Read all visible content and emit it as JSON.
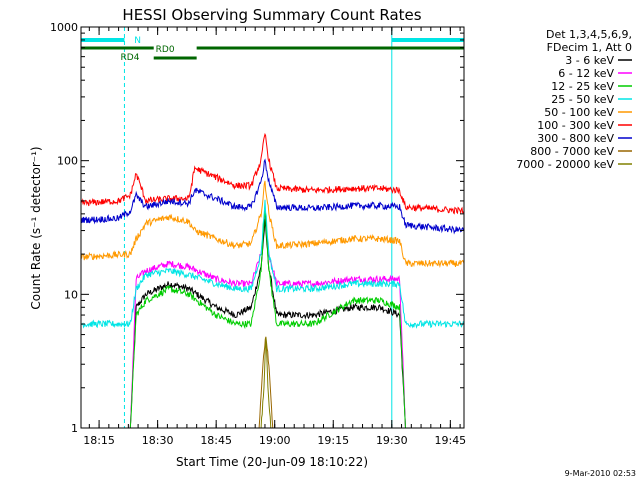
{
  "chart_data": {
    "type": "line",
    "title": "HESSI Observing Summary Count Rates",
    "xlabel": "Start Time (20-Jun-09 18:10:22)",
    "ylabel": "Count Rate (s⁻¹ detector⁻¹)",
    "x_scale": "time",
    "y_scale": "log",
    "xlim": [
      "18:10:22",
      "19:48:30"
    ],
    "ylim": [
      1,
      1000
    ],
    "x_ticks": [
      "18:15",
      "18:30",
      "18:45",
      "19:00",
      "19:15",
      "19:30",
      "19:45"
    ],
    "y_ticks": [
      "1",
      "10",
      "100",
      "1000"
    ],
    "legend_header": [
      "Det 1,3,4,5,6,9,",
      "FDecim 1, Att 0"
    ],
    "legend_position": "top-right, outside plot",
    "footer_date": "9-Mar-2010 02:53",
    "series": [
      {
        "name": "3 - 6 keV",
        "color": "#000000",
        "x": [
          "18:10:22",
          "18:23:00",
          "18:24:30",
          "18:27:00",
          "18:33:00",
          "18:38:00",
          "18:45:00",
          "18:50:00",
          "18:54:00",
          "18:56:30",
          "18:57:30",
          "18:58:30",
          "19:00:30",
          "19:10:00",
          "19:20:00",
          "19:27:00",
          "19:32:00",
          "19:33:30"
        ],
        "y": [
          1,
          1,
          8,
          10,
          12,
          11,
          8,
          7,
          8,
          16,
          35,
          16,
          7,
          7,
          8,
          8,
          7,
          1
        ]
      },
      {
        "name": "6 - 12 keV",
        "color": "#ff00ff",
        "x": [
          "18:10:22",
          "18:23:00",
          "18:24:30",
          "18:27:00",
          "18:33:00",
          "18:38:00",
          "18:45:00",
          "18:50:00",
          "18:54:00",
          "18:56:30",
          "18:57:30",
          "18:58:30",
          "19:00:30",
          "19:10:00",
          "19:20:00",
          "19:27:00",
          "19:32:00",
          "19:33:30"
        ],
        "y": [
          1,
          1,
          13,
          15,
          17,
          16,
          13,
          12,
          12,
          20,
          40,
          20,
          12,
          12,
          13,
          13,
          13,
          1
        ]
      },
      {
        "name": "12 - 25 keV",
        "color": "#00cc00",
        "x": [
          "18:10:22",
          "18:23:00",
          "18:24:30",
          "18:27:00",
          "18:33:00",
          "18:38:00",
          "18:45:00",
          "18:50:00",
          "18:54:00",
          "18:56:30",
          "18:57:30",
          "18:58:30",
          "19:00:30",
          "19:10:00",
          "19:20:00",
          "19:27:00",
          "19:32:00",
          "19:33:30"
        ],
        "y": [
          1,
          1,
          7,
          9,
          11,
          10,
          7,
          6,
          6,
          15,
          45,
          15,
          6,
          6,
          9,
          9,
          8,
          1
        ]
      },
      {
        "name": "25 - 50 keV",
        "color": "#00e5e5",
        "x": [
          "18:10:22",
          "18:23:00",
          "18:24:30",
          "18:27:00",
          "18:33:00",
          "18:38:00",
          "18:45:00",
          "18:50:00",
          "18:54:00",
          "18:56:30",
          "18:57:30",
          "18:58:30",
          "19:00:30",
          "19:10:00",
          "19:20:00",
          "19:27:00",
          "19:32:00",
          "19:33:30",
          "19:35:00",
          "19:48:30"
        ],
        "y": [
          6,
          6,
          11,
          14,
          15,
          14,
          12,
          11,
          11,
          20,
          50,
          20,
          11,
          11,
          12,
          12,
          12,
          6,
          6,
          6
        ]
      },
      {
        "name": "50 - 100 keV",
        "color": "#ff9900",
        "x": [
          "18:10:22",
          "18:23:00",
          "18:24:30",
          "18:27:00",
          "18:33:00",
          "18:38:00",
          "18:39:30",
          "18:45:00",
          "18:50:00",
          "18:54:00",
          "18:56:30",
          "18:57:30",
          "18:58:30",
          "19:00:30",
          "19:10:00",
          "19:20:00",
          "19:27:00",
          "19:32:00",
          "19:33:30",
          "19:48:30"
        ],
        "y": [
          19,
          20,
          26,
          34,
          38,
          35,
          30,
          26,
          23,
          24,
          40,
          70,
          40,
          23,
          24,
          26,
          26,
          25,
          17,
          17
        ]
      },
      {
        "name": "100 - 300 keV",
        "color": "#ff0000",
        "x": [
          "18:10:22",
          "18:20:00",
          "18:23:00",
          "18:24:30",
          "18:27:00",
          "18:33:00",
          "18:38:00",
          "18:39:30",
          "18:45:00",
          "18:50:00",
          "18:54:00",
          "18:56:30",
          "18:57:30",
          "18:58:30",
          "19:00:30",
          "19:10:00",
          "19:20:00",
          "19:27:00",
          "19:32:00",
          "19:33:30",
          "19:48:30"
        ],
        "y": [
          48,
          50,
          55,
          80,
          50,
          52,
          52,
          88,
          75,
          65,
          65,
          100,
          160,
          100,
          62,
          60,
          62,
          62,
          60,
          45,
          42
        ]
      },
      {
        "name": "300 - 800 keV",
        "color": "#0000cc",
        "x": [
          "18:10:22",
          "18:20:00",
          "18:23:00",
          "18:24:30",
          "18:27:00",
          "18:33:00",
          "18:38:00",
          "18:39:30",
          "18:45:00",
          "18:50:00",
          "18:54:00",
          "18:56:30",
          "18:57:30",
          "18:58:30",
          "19:00:30",
          "19:10:00",
          "19:20:00",
          "19:27:00",
          "19:32:00",
          "19:33:30",
          "19:48:30"
        ],
        "y": [
          36,
          37,
          42,
          55,
          45,
          50,
          48,
          60,
          52,
          45,
          45,
          70,
          100,
          70,
          45,
          44,
          46,
          46,
          45,
          33,
          30
        ]
      },
      {
        "name": "800 - 7000 keV",
        "color": "#996600",
        "x": [
          "18:10:22",
          "18:56:00",
          "18:57:00",
          "18:57:45",
          "18:58:30",
          "18:59:30",
          "19:48:30"
        ],
        "y": [
          1,
          1,
          3,
          5,
          3,
          1,
          1
        ]
      },
      {
        "name": "7000 - 20000 keV",
        "color": "#808000",
        "x": [
          "18:10:22",
          "18:56:30",
          "18:57:15",
          "18:57:45",
          "18:58:15",
          "18:59:00",
          "19:48:30"
        ],
        "y": [
          1,
          1,
          2,
          5,
          2,
          1,
          1
        ]
      }
    ],
    "observing_flags": [
      {
        "label": "N",
        "color": "#00e5e5",
        "intervals": [
          [
            "18:10:22",
            "18:21:30"
          ],
          [
            "19:30:00",
            "19:48:30"
          ]
        ]
      },
      {
        "label": "RD0",
        "color": "#006600",
        "intervals": [
          [
            "18:10:22",
            "18:29:00"
          ],
          [
            "18:40:00",
            "19:48:30"
          ]
        ]
      },
      {
        "label": "RD4",
        "color": "#006600",
        "intervals": [
          [
            "18:29:00",
            "18:40:00"
          ]
        ]
      }
    ]
  }
}
